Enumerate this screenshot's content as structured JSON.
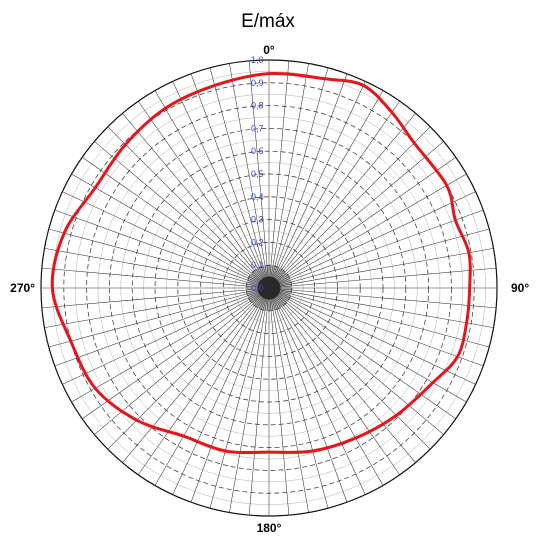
{
  "chart_data": {
    "type": "polar-line",
    "title": "E/máx",
    "angle_labels": [
      {
        "angle": 0,
        "text": "0°"
      },
      {
        "angle": 90,
        "text": "90°"
      },
      {
        "angle": 180,
        "text": "180°"
      },
      {
        "angle": 270,
        "text": "270°"
      }
    ],
    "radial_ticks": [
      "0,0",
      "0,1",
      "0,2",
      "0,3",
      "0,4",
      "0,5",
      "0,6",
      "0,7",
      "0,8",
      "0,9",
      "1,0"
    ],
    "r_range": [
      0,
      1.0
    ],
    "grid": true,
    "series": [
      {
        "color": "#e8141c",
        "points": [
          {
            "angle": 0,
            "r": 0.94
          },
          {
            "angle": 15,
            "r": 0.95
          },
          {
            "angle": 25,
            "r": 0.98
          },
          {
            "angle": 35,
            "r": 0.94
          },
          {
            "angle": 45,
            "r": 0.9
          },
          {
            "angle": 60,
            "r": 0.9
          },
          {
            "angle": 70,
            "r": 0.87
          },
          {
            "angle": 80,
            "r": 0.89
          },
          {
            "angle": 90,
            "r": 0.88
          },
          {
            "angle": 100,
            "r": 0.88
          },
          {
            "angle": 110,
            "r": 0.88
          },
          {
            "angle": 120,
            "r": 0.83
          },
          {
            "angle": 135,
            "r": 0.79
          },
          {
            "angle": 150,
            "r": 0.76
          },
          {
            "angle": 165,
            "r": 0.74
          },
          {
            "angle": 180,
            "r": 0.72
          },
          {
            "angle": 195,
            "r": 0.74
          },
          {
            "angle": 210,
            "r": 0.75
          },
          {
            "angle": 225,
            "r": 0.82
          },
          {
            "angle": 240,
            "r": 0.88
          },
          {
            "angle": 255,
            "r": 0.9
          },
          {
            "angle": 270,
            "r": 0.95
          },
          {
            "angle": 285,
            "r": 0.93
          },
          {
            "angle": 300,
            "r": 0.88
          },
          {
            "angle": 315,
            "r": 0.89
          },
          {
            "angle": 330,
            "r": 0.91
          },
          {
            "angle": 345,
            "r": 0.92
          }
        ]
      }
    ]
  }
}
